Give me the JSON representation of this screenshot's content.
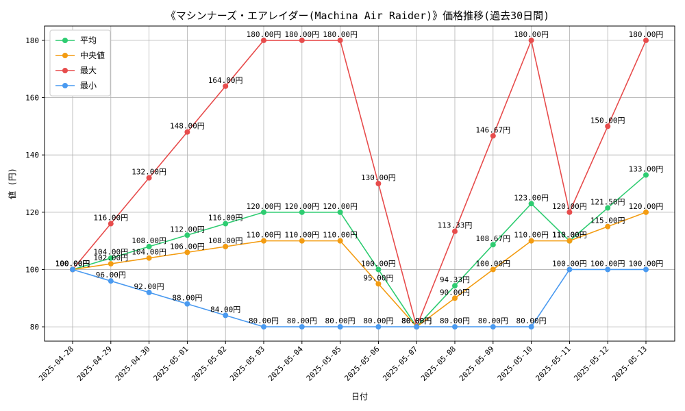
{
  "chart_data": {
    "type": "line",
    "title": "《マシンナーズ・エアレイダー(Machina Air Raider)》価格推移(過去30日間)",
    "xlabel": "日付",
    "ylabel": "値 (円)",
    "ylim": [
      75,
      185
    ],
    "yticks": [
      80,
      100,
      120,
      140,
      160,
      180
    ],
    "grid": true,
    "legend_position": "top-left",
    "label_suffix": "円",
    "categories": [
      "2025-04-28",
      "2025-04-29",
      "2025-04-30",
      "2025-05-01",
      "2025-05-02",
      "2025-05-03",
      "2025-05-04",
      "2025-05-05",
      "2025-05-06",
      "2025-05-07",
      "2025-05-08",
      "2025-05-09",
      "2025-05-10",
      "2025-05-11",
      "2025-05-12",
      "2025-05-13"
    ],
    "series": [
      {
        "name": "平均",
        "color": "#2ecc71",
        "values": [
          100.0,
          104.0,
          108.0,
          112.0,
          116.0,
          120.0,
          120.0,
          120.0,
          100.0,
          80.0,
          94.33,
          108.67,
          123.0,
          110.0,
          121.5,
          133.0
        ]
      },
      {
        "name": "中央値",
        "color": "#f39c12",
        "values": [
          100.0,
          102.0,
          104.0,
          106.0,
          108.0,
          110.0,
          110.0,
          110.0,
          95.0,
          80.0,
          90.0,
          100.0,
          110.0,
          110.0,
          115.0,
          120.0
        ]
      },
      {
        "name": "最大",
        "color": "#e74c4c",
        "values": [
          100.0,
          116.0,
          132.0,
          148.0,
          164.0,
          180.0,
          180.0,
          180.0,
          130.0,
          80.0,
          113.33,
          146.67,
          180.0,
          120.0,
          150.0,
          180.0
        ]
      },
      {
        "name": "最小",
        "color": "#4a9af0",
        "values": [
          100.0,
          96.0,
          92.0,
          88.0,
          84.0,
          80.0,
          80.0,
          80.0,
          80.0,
          80.0,
          80.0,
          80.0,
          80.0,
          100.0,
          100.0,
          100.0
        ]
      }
    ]
  }
}
